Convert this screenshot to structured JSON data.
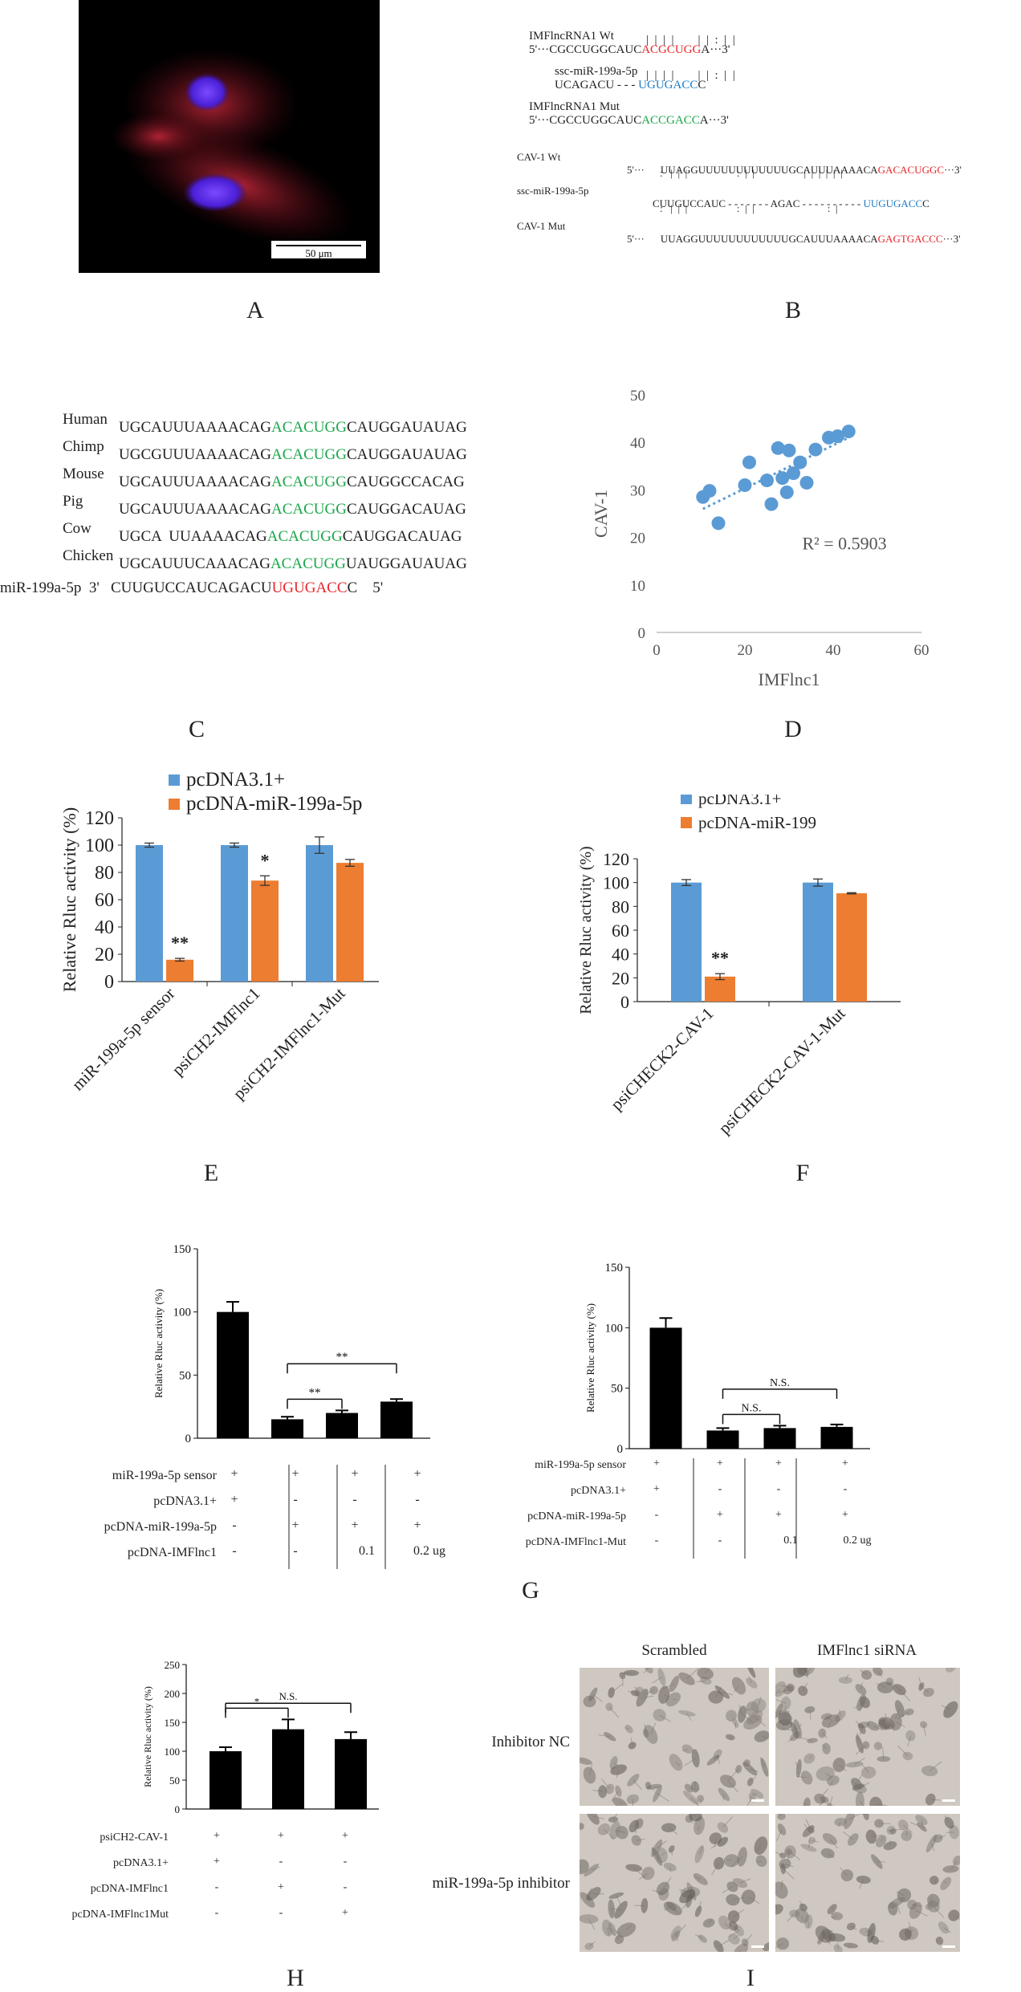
{
  "panel_labels": {
    "A": "A",
    "B": "B",
    "C": "C",
    "D": "D",
    "E": "E",
    "F": "F",
    "G": "G",
    "H": "H",
    "I": "I"
  },
  "panel_a": {
    "scale_bar": "50 μm"
  },
  "panel_b": {
    "imf": {
      "wt_label": "IMFlncRNA1 Wt",
      "wt_prefix": "5'···CGCCUGGCAUC",
      "wt_site": "ACGCUGG",
      "wt_suffix": "A···3'",
      "pairing1": "|  |  |  |        |  |  :  |  |",
      "mir_label": "ssc-miR-199a-5p",
      "mir_prefix": "UCAGACU - - - ",
      "mir_site": "UGUGACC",
      "mir_suffix": "C",
      "pairing2": "|  |  |  |        |  |  :  |  |",
      "mut_label": "IMFlncRNA1 Mut",
      "mut_prefix": "5'···CGCCUGGCAUC",
      "mut_site": "ACCGACC",
      "mut_suffix": "A···3'"
    },
    "cav": {
      "wt_label": "CAV-1 Wt",
      "wt_prefix": "5'···",
      "wt_seq": "UUAGGUUUUUUUUUUUUGCAUUUAAAACA",
      "wt_site": "GACACUGGC",
      "wt_suffix": "···3'",
      "pairing1": ":   |  |  |                   :  |  |                   |  |  |  |  |  |",
      "mir_label": "ssc-miR-199a-5p",
      "mir_seq": "CUUGUCCAUC - - - - - - - AGAC - - - - - - - - - - ",
      "mir_site": "UUGUGACC",
      "mir_suffix": "C",
      "pairing2": ":   |  |  |                   :  |  |                            :  |",
      "mut_label": "CAV-1 Mut",
      "mut_prefix": "5'···",
      "mut_seq": "UUAGGUUUUUUUUUUUUGCAUUUAAAACA",
      "mut_site": "GAGTGACCC",
      "mut_suffix": "···3'"
    }
  },
  "panel_c": {
    "rows": [
      {
        "species": "Human",
        "pre": "UGCAUUUAAAACAG",
        "site": "ACACUGG",
        "post": "CAUGGAUAUAG"
      },
      {
        "species": "Chimp",
        "pre": "UGCGUUUAAAACAG",
        "site": "ACACUGG",
        "post": "CAUGGAUAUAG"
      },
      {
        "species": "Mouse",
        "pre": "UGCAUUUAAAACAG",
        "site": "ACACUGG",
        "post": "CAUGGCCACAG"
      },
      {
        "species": "Pig",
        "pre": "UGCAUUUAAAACAG",
        "site": "ACACUGG",
        "post": "CAUGGACAUAG"
      },
      {
        "species": "Cow",
        "pre": "UGCA  UUAAAACAG",
        "site": "ACACUGG",
        "post": "CAUGGACAUAG"
      },
      {
        "species": "Chicken",
        "pre": "UGCAUUUCAAACAG",
        "site": "ACACUGG",
        "post": "UAUGGAUAUAG"
      }
    ],
    "mir_label": "miR-199a-5p  3'   CUUGUCCAUCAGACU",
    "mir_site": "UGUGACC",
    "mir_suffix": "C    5'",
    "colors": {
      "site": "#1aa64a",
      "mir_site": "#e8262b"
    }
  },
  "chart_data": [
    {
      "id": "D",
      "type": "scatter",
      "xlabel": "IMFlnc1",
      "ylabel": "CAV-1",
      "xlim": [
        0,
        60
      ],
      "ylim": [
        0,
        50
      ],
      "xticks": [
        0,
        20,
        40,
        60
      ],
      "yticks": [
        0,
        10,
        20,
        30,
        40,
        50
      ],
      "annotation": "R² = 0.5903",
      "points": [
        [
          10.5,
          28.5
        ],
        [
          12,
          29.8
        ],
        [
          14,
          23
        ],
        [
          20,
          31
        ],
        [
          21,
          35.8
        ],
        [
          25,
          32
        ],
        [
          26,
          27
        ],
        [
          27.5,
          38.8
        ],
        [
          28.5,
          32.5
        ],
        [
          29.5,
          29.5
        ],
        [
          30,
          38.3
        ],
        [
          31,
          33.5
        ],
        [
          32.5,
          35.8
        ],
        [
          34,
          31.5
        ],
        [
          36,
          38.5
        ],
        [
          39,
          41
        ],
        [
          41,
          41.3
        ],
        [
          43.5,
          42.3
        ]
      ],
      "trendline": {
        "from": [
          10.5,
          26
        ],
        "to": [
          43.5,
          41
        ]
      }
    },
    {
      "id": "E",
      "type": "bar",
      "ylabel": "Relative Rluc activity (%)",
      "ylim": [
        0,
        120
      ],
      "yticks": [
        0,
        20,
        40,
        60,
        80,
        100,
        120
      ],
      "categories": [
        "miR-199a-5p sensor",
        "psiCH2-IMFlnc1",
        "psiCH2-IMFlnc1-Mut"
      ],
      "series": [
        {
          "name": "pcDNA3.1+",
          "color": "#5b9bd5",
          "values": [
            100,
            100,
            100
          ],
          "errors": [
            1.5,
            1.5,
            6
          ]
        },
        {
          "name": "pcDNA-miR-199a-5p",
          "color": "#ed7d31",
          "values": [
            16,
            74,
            87
          ],
          "errors": [
            1,
            3.5,
            2.5
          ]
        }
      ],
      "significance": [
        "**",
        "*",
        ""
      ]
    },
    {
      "id": "F",
      "type": "bar",
      "ylabel": "Relative Rluc activity (%)",
      "ylim": [
        0,
        120
      ],
      "yticks": [
        0,
        20,
        40,
        60,
        80,
        100,
        120
      ],
      "categories": [
        "psiCHECK2-CAV-1",
        "psiCHECK2-CAV-1-Mut"
      ],
      "series": [
        {
          "name": "pcDNA3.1+",
          "color": "#5b9bd5",
          "values": [
            100,
            100
          ],
          "errors": [
            2.5,
            3
          ]
        },
        {
          "name": "pcDNA-miR-199",
          "color": "#ed7d31",
          "values": [
            21,
            91
          ],
          "errors": [
            2.5,
            0.5
          ]
        }
      ],
      "significance": [
        "**",
        ""
      ]
    },
    {
      "id": "G-left",
      "type": "bar",
      "ylabel": "Relative Rluc activity (%)",
      "ylim": [
        0,
        150
      ],
      "yticks": [
        0,
        50,
        100,
        150
      ],
      "categories": [
        "1",
        "2",
        "3",
        "4"
      ],
      "values": [
        100,
        15,
        20,
        29
      ],
      "errors": [
        8,
        2,
        2,
        2
      ],
      "brackets": [
        {
          "from": 1,
          "to": 2,
          "label": "**"
        },
        {
          "from": 1,
          "to": 3,
          "label": "**"
        }
      ]
    },
    {
      "id": "G-right",
      "type": "bar",
      "ylabel": "Relative Rluc activity (%)",
      "ylim": [
        0,
        150
      ],
      "yticks": [
        0,
        50,
        100,
        150
      ],
      "categories": [
        "1",
        "2",
        "3",
        "4"
      ],
      "values": [
        100,
        15,
        17,
        18
      ],
      "errors": [
        8,
        2,
        2,
        2
      ],
      "brackets": [
        {
          "from": 1,
          "to": 2,
          "label": "N.S."
        },
        {
          "from": 1,
          "to": 3,
          "label": "N.S."
        }
      ]
    },
    {
      "id": "H",
      "type": "bar",
      "ylabel": "Relative Rluc activity (%)",
      "ylim": [
        0,
        250
      ],
      "yticks": [
        0,
        50,
        100,
        150,
        200,
        250
      ],
      "categories": [
        "1",
        "2",
        "3"
      ],
      "values": [
        100,
        138,
        121
      ],
      "errors": [
        7,
        17,
        12
      ],
      "brackets": [
        {
          "from": 0,
          "to": 1,
          "label": "*"
        },
        {
          "from": 0,
          "to": 2,
          "label": "N.S."
        }
      ]
    }
  ],
  "panel_g_left": {
    "rows": [
      {
        "label": "miR-199a-5p sensor",
        "cells": [
          "+",
          "+",
          "+",
          "+"
        ]
      },
      {
        "label": "pcDNA3.1+",
        "cells": [
          "+",
          "-",
          "-",
          "-"
        ]
      },
      {
        "label": "pcDNA-miR-199a-5p",
        "cells": [
          "-",
          "+",
          "+",
          "+"
        ]
      },
      {
        "label": "pcDNA-IMFlnc1",
        "cells": [
          "-",
          "-",
          "0.1",
          "0.2 ug"
        ]
      }
    ]
  },
  "panel_g_right": {
    "rows": [
      {
        "label": "miR-199a-5p sensor",
        "cells": [
          "+",
          "+",
          "+",
          "+"
        ]
      },
      {
        "label": "pcDNA3.1+",
        "cells": [
          "+",
          "-",
          "-",
          "-"
        ]
      },
      {
        "label": "pcDNA-miR-199a-5p",
        "cells": [
          "-",
          "+",
          "+",
          "+"
        ]
      },
      {
        "label": "pcDNA-IMFlnc1-Mut",
        "cells": [
          "-",
          "-",
          "0.1",
          "0.2 ug"
        ]
      }
    ]
  },
  "panel_h": {
    "rows": [
      {
        "label": "psiCH2-CAV-1",
        "cells": [
          "+",
          "+",
          "+"
        ]
      },
      {
        "label": "pcDNA3.1+",
        "cells": [
          "+",
          "-",
          "-"
        ]
      },
      {
        "label": "pcDNA-IMFlnc1",
        "cells": [
          "-",
          "+",
          "-"
        ]
      },
      {
        "label": "pcDNA-IMFlnc1Mut",
        "cells": [
          "-",
          "-",
          "+"
        ]
      }
    ]
  },
  "panel_i": {
    "col1": "Scrambled",
    "col2": "IMFlnc1 siRNA",
    "row1": "Inhibitor  NC",
    "row2": "miR-199a-5p inhibitor"
  }
}
